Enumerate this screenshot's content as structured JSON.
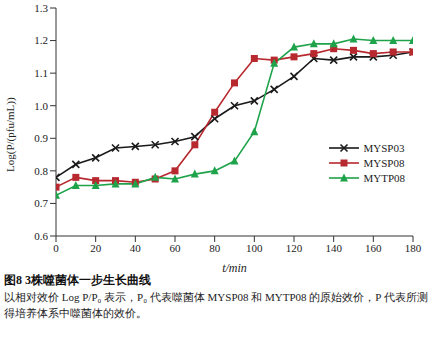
{
  "chart_data": {
    "type": "line",
    "title": "图8  3株噬菌体一步生长曲线",
    "subtitle": "以相对效价 Log P/P₀ 表示，P₀ 代表噬菌体 MYSP08 和 MYTP08 的原始效价，P 代表所测得培养体系中噬菌体的效价。",
    "x_label": "t/min",
    "y_label": "Log(P/(pfu/mL))",
    "x": [
      0,
      10,
      20,
      30,
      40,
      50,
      60,
      70,
      80,
      90,
      100,
      110,
      120,
      130,
      140,
      150,
      160,
      170,
      180
    ],
    "series": [
      {
        "name": "MYSP03",
        "color": "#1a1a1a",
        "marker": "x",
        "values": [
          0.78,
          0.82,
          0.84,
          0.87,
          0.875,
          0.88,
          0.89,
          0.905,
          0.96,
          1.0,
          1.015,
          1.05,
          1.09,
          1.145,
          1.14,
          1.15,
          1.15,
          1.155,
          1.165
        ]
      },
      {
        "name": "MYSP08",
        "color": "#b8292f",
        "marker": "square",
        "values": [
          0.75,
          0.78,
          0.77,
          0.77,
          0.765,
          0.775,
          0.8,
          0.88,
          0.98,
          1.07,
          1.145,
          1.14,
          1.15,
          1.16,
          1.175,
          1.17,
          1.16,
          1.165,
          1.165
        ]
      },
      {
        "name": "MYTP08",
        "color": "#1ea34a",
        "marker": "triangle",
        "values": [
          0.725,
          0.755,
          0.755,
          0.76,
          0.76,
          0.78,
          0.775,
          0.79,
          0.8,
          0.83,
          0.92,
          1.13,
          1.18,
          1.19,
          1.19,
          1.205,
          1.2,
          1.2,
          1.2
        ]
      }
    ],
    "xlim": [
      0,
      180
    ],
    "xticks": [
      0,
      20,
      40,
      60,
      80,
      100,
      120,
      140,
      160,
      180
    ],
    "ylim": [
      0.6,
      1.3
    ],
    "yticks": [
      0.6,
      0.7,
      0.8,
      0.9,
      {
        "value": 1,
        "label": "1.0"
      },
      1.1,
      1.2,
      1.3
    ],
    "legend": "right"
  }
}
